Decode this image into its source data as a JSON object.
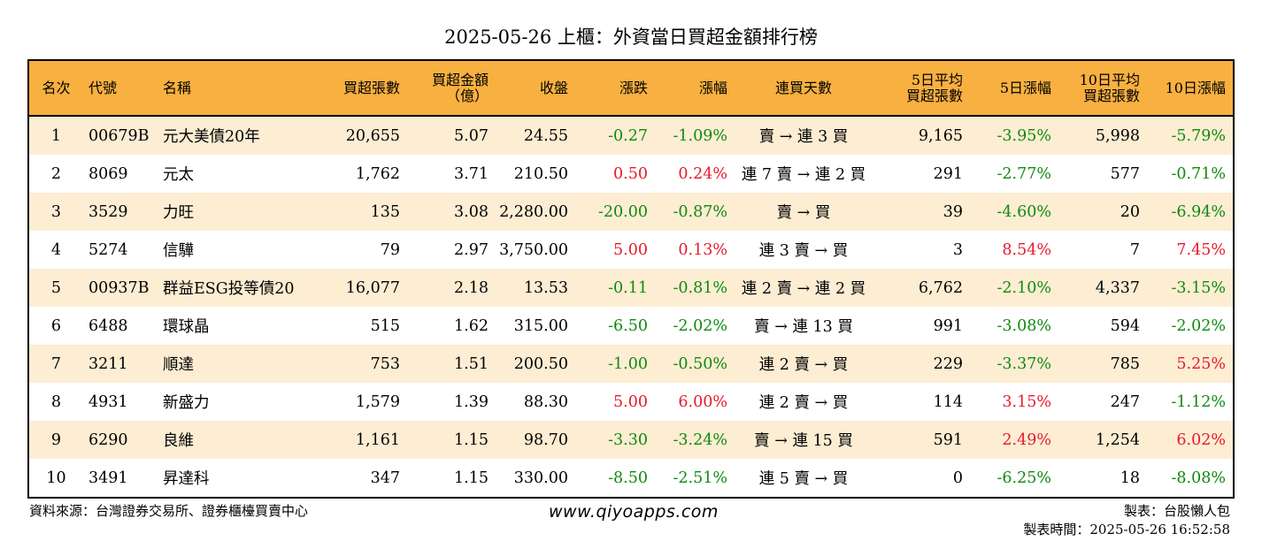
{
  "title": "2025-05-26 上櫃：外資當日買超金額排行榜",
  "headers": {
    "rank": "名次",
    "code": "代號",
    "name": "名稱",
    "buy_shares": "買超張數",
    "buy_amount_line1": "買超金額",
    "buy_amount_line2": "（億）",
    "close": "收盤",
    "change": "漲跌",
    "change_pct": "漲幅",
    "buy_days": "連買天數",
    "avg5_line1": "5日平均",
    "avg5_line2": "買超張數",
    "pct5": "5日漲幅",
    "avg10_line1": "10日平均",
    "avg10_line2": "買超張數",
    "pct10": "10日漲幅"
  },
  "rows": [
    {
      "rank": "1",
      "code": "00679B",
      "name": "元大美債20年",
      "buy_shares": "20,655",
      "buy_amount": "5.07",
      "close": "24.55",
      "change": "-0.27",
      "change_pct": "-1.09%",
      "buy_days": "賣 → 連 3 買",
      "avg5": "9,165",
      "pct5": "-3.95%",
      "avg10": "5,998",
      "pct10": "-5.79%"
    },
    {
      "rank": "2",
      "code": "8069",
      "name": "元太",
      "buy_shares": "1,762",
      "buy_amount": "3.71",
      "close": "210.50",
      "change": "0.50",
      "change_pct": "0.24%",
      "buy_days": "連 7 賣 → 連 2 買",
      "avg5": "291",
      "pct5": "-2.77%",
      "avg10": "577",
      "pct10": "-0.71%"
    },
    {
      "rank": "3",
      "code": "3529",
      "name": "力旺",
      "buy_shares": "135",
      "buy_amount": "3.08",
      "close": "2,280.00",
      "change": "-20.00",
      "change_pct": "-0.87%",
      "buy_days": "賣 → 買",
      "avg5": "39",
      "pct5": "-4.60%",
      "avg10": "20",
      "pct10": "-6.94%"
    },
    {
      "rank": "4",
      "code": "5274",
      "name": "信驊",
      "buy_shares": "79",
      "buy_amount": "2.97",
      "close": "3,750.00",
      "change": "5.00",
      "change_pct": "0.13%",
      "buy_days": "連 3 賣 → 買",
      "avg5": "3",
      "pct5": "8.54%",
      "avg10": "7",
      "pct10": "7.45%"
    },
    {
      "rank": "5",
      "code": "00937B",
      "name": "群益ESG投等債20",
      "buy_shares": "16,077",
      "buy_amount": "2.18",
      "close": "13.53",
      "change": "-0.11",
      "change_pct": "-0.81%",
      "buy_days": "連 2 賣 → 連 2 買",
      "avg5": "6,762",
      "pct5": "-2.10%",
      "avg10": "4,337",
      "pct10": "-3.15%"
    },
    {
      "rank": "6",
      "code": "6488",
      "name": "環球晶",
      "buy_shares": "515",
      "buy_amount": "1.62",
      "close": "315.00",
      "change": "-6.50",
      "change_pct": "-2.02%",
      "buy_days": "賣 → 連 13 買",
      "avg5": "991",
      "pct5": "-3.08%",
      "avg10": "594",
      "pct10": "-2.02%"
    },
    {
      "rank": "7",
      "code": "3211",
      "name": "順達",
      "buy_shares": "753",
      "buy_amount": "1.51",
      "close": "200.50",
      "change": "-1.00",
      "change_pct": "-0.50%",
      "buy_days": "連 2 賣 → 買",
      "avg5": "229",
      "pct5": "-3.37%",
      "avg10": "785",
      "pct10": "5.25%"
    },
    {
      "rank": "8",
      "code": "4931",
      "name": "新盛力",
      "buy_shares": "1,579",
      "buy_amount": "1.39",
      "close": "88.30",
      "change": "5.00",
      "change_pct": "6.00%",
      "buy_days": "連 2 賣 → 買",
      "avg5": "114",
      "pct5": "3.15%",
      "avg10": "247",
      "pct10": "-1.12%"
    },
    {
      "rank": "9",
      "code": "6290",
      "name": "良維",
      "buy_shares": "1,161",
      "buy_amount": "1.15",
      "close": "98.70",
      "change": "-3.30",
      "change_pct": "-3.24%",
      "buy_days": "賣 → 連 15 買",
      "avg5": "591",
      "pct5": "2.49%",
      "avg10": "1,254",
      "pct10": "6.02%"
    },
    {
      "rank": "10",
      "code": "3491",
      "name": "昇達科",
      "buy_shares": "347",
      "buy_amount": "1.15",
      "close": "330.00",
      "change": "-8.50",
      "change_pct": "-2.51%",
      "buy_days": "連 5 賣 → 買",
      "avg5": "0",
      "pct5": "-6.25%",
      "avg10": "18",
      "pct10": "-8.08%"
    }
  ],
  "colors": {
    "header_bg": "#f8b040",
    "odd_row_bg": "#fcedd3",
    "positive": "#e8192c",
    "negative": "#108a10"
  },
  "footer": {
    "source": "資料來源：台灣證券交易所、證券櫃檯買賣中心",
    "website": "www.qiyoapps.com",
    "maker": "製表：台股懶人包",
    "time": "製表時間：2025-05-26 16:52:58"
  }
}
